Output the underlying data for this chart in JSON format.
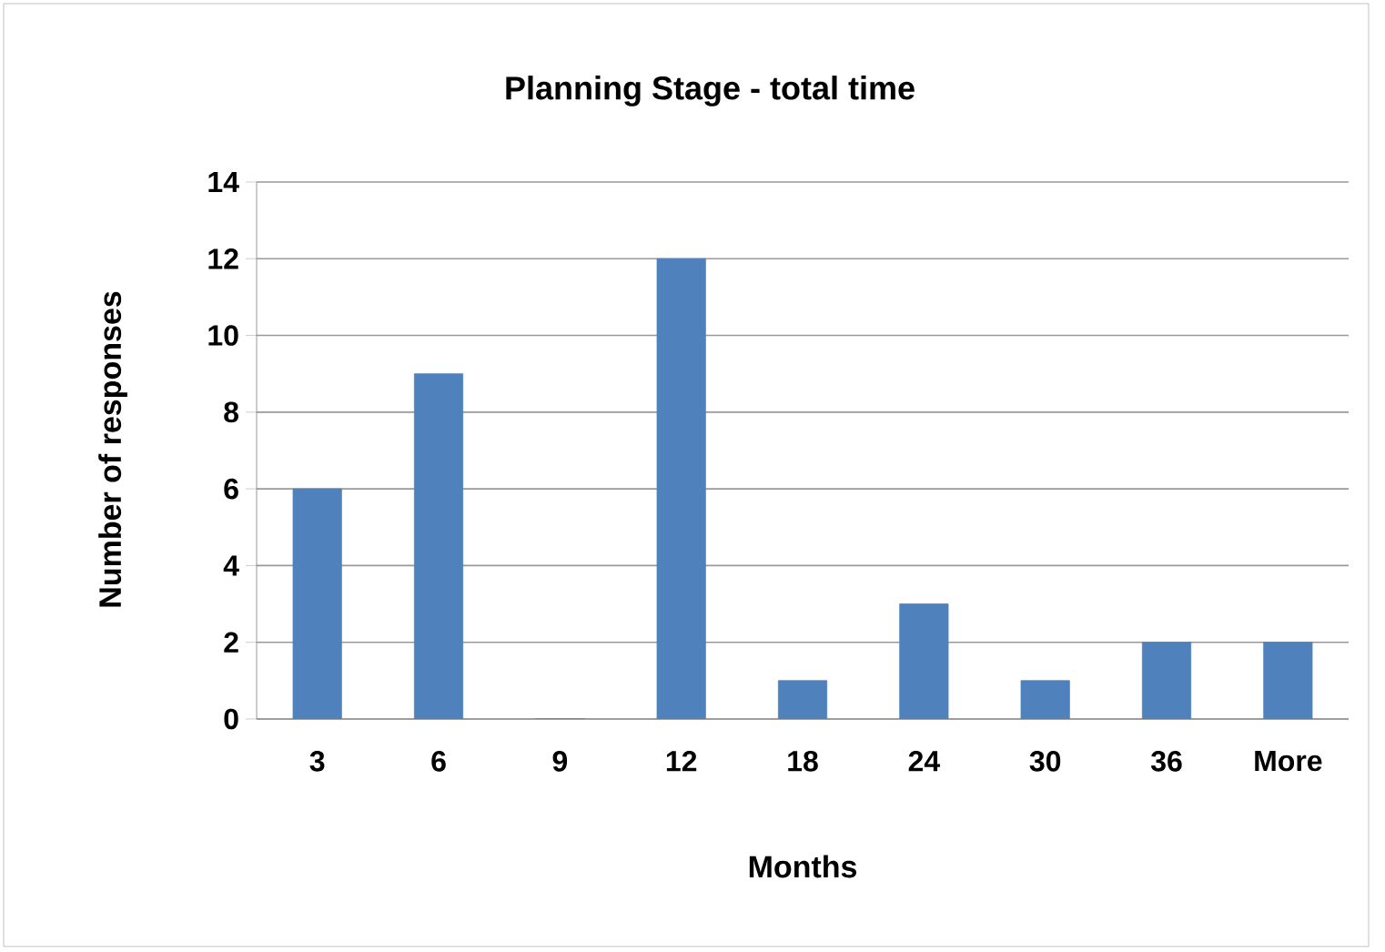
{
  "chart_data": {
    "type": "bar",
    "title": "Planning Stage - total time",
    "xlabel": "Months",
    "ylabel": "Number of responses",
    "categories": [
      "3",
      "6",
      "9",
      "12",
      "18",
      "24",
      "30",
      "36",
      "More"
    ],
    "values": [
      6,
      9,
      0,
      12,
      1,
      3,
      1,
      2,
      2
    ],
    "color": "#4f81bd",
    "ylim": [
      0,
      14
    ],
    "yticks": [
      0,
      2,
      4,
      6,
      8,
      10,
      12,
      14
    ],
    "grid": "y"
  }
}
